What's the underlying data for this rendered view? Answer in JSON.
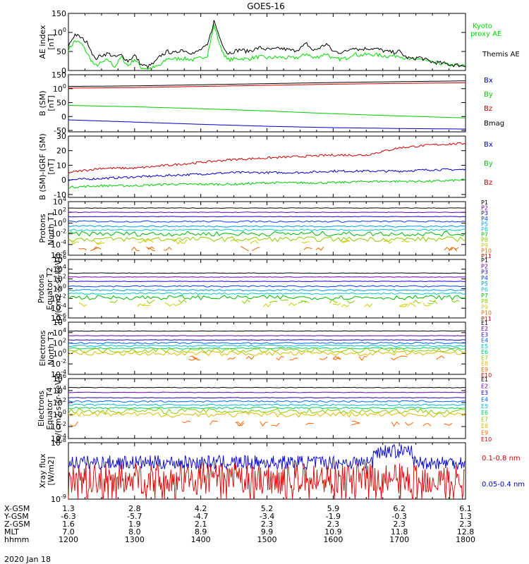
{
  "title": "GOES-16",
  "date_label": "2020 Jan 18",
  "chart_data": [
    {
      "type": "line",
      "panel": "AE index",
      "ylabel": [
        "AE index",
        "[nT]"
      ],
      "ylim": [
        0,
        150
      ],
      "yticks": [
        "0",
        "50",
        "100",
        "150"
      ],
      "ytick_values": [
        0,
        50,
        100,
        150
      ],
      "series": [
        {
          "name": "Kyoto proxy AE",
          "color": "#00dd00",
          "x": [
            1200,
            1210,
            1220,
            1230,
            1240,
            1250,
            1260,
            1270,
            1280,
            1290,
            1300,
            1310,
            1320,
            1330,
            1340,
            1350,
            1360,
            1370,
            1380,
            1390,
            1400,
            1410,
            1420,
            1430,
            1440,
            1450,
            1460,
            1470,
            1480,
            1490,
            1500,
            1510,
            1520,
            1530,
            1540,
            1550,
            1560,
            1570,
            1580,
            1590,
            1600,
            1610,
            1620,
            1630,
            1640,
            1650,
            1660,
            1670,
            1680,
            1690,
            1700,
            1710,
            1720,
            1730,
            1740,
            1750,
            1760,
            1770,
            1780,
            1790,
            1800
          ],
          "values": [
            55,
            78,
            70,
            40,
            12,
            20,
            28,
            10,
            35,
            12,
            30,
            8,
            5,
            8,
            15,
            32,
            30,
            32,
            30,
            28,
            33,
            40,
            120,
            60,
            28,
            30,
            32,
            30,
            34,
            36,
            33,
            34,
            35,
            33,
            33,
            35,
            45,
            32,
            38,
            45,
            30,
            30,
            32,
            44,
            40,
            42,
            42,
            40,
            38,
            38,
            40,
            30,
            28,
            32,
            25,
            20,
            20,
            15,
            14,
            12,
            12
          ]
        },
        {
          "name": "Themis AE",
          "color": "#000000",
          "x": [
            1200,
            1210,
            1220,
            1230,
            1240,
            1250,
            1260,
            1270,
            1280,
            1290,
            1300,
            1310,
            1320,
            1330,
            1340,
            1350,
            1360,
            1370,
            1380,
            1390,
            1400,
            1410,
            1420,
            1430,
            1440,
            1450,
            1460,
            1470,
            1480,
            1490,
            1500,
            1510,
            1520,
            1530,
            1540,
            1550,
            1560,
            1570,
            1580,
            1590,
            1600,
            1610,
            1620,
            1630,
            1640,
            1650,
            1660,
            1670,
            1680,
            1690,
            1700,
            1710,
            1720,
            1730,
            1740,
            1750,
            1760,
            1770,
            1780,
            1790,
            1800
          ],
          "values": [
            65,
            95,
            85,
            70,
            30,
            40,
            45,
            35,
            40,
            25,
            40,
            15,
            10,
            20,
            40,
            50,
            45,
            55,
            50,
            45,
            55,
            65,
            130,
            80,
            45,
            50,
            55,
            50,
            55,
            60,
            55,
            55,
            58,
            55,
            52,
            58,
            70,
            52,
            60,
            70,
            50,
            48,
            50,
            62,
            55,
            58,
            58,
            55,
            50,
            48,
            50,
            35,
            30,
            35,
            28,
            22,
            20,
            18,
            15,
            14,
            12
          ]
        }
      ]
    },
    {
      "type": "line",
      "panel": "B (SM)",
      "ylabel": [
        "B (SM)",
        "[nT]"
      ],
      "ylim": [
        -55,
        150
      ],
      "yticks": [
        "-50",
        "0",
        "50",
        "100",
        "150"
      ],
      "ytick_values": [
        -50,
        0,
        50,
        100,
        150
      ],
      "series": [
        {
          "name": "Bx",
          "color": "#0000cc",
          "x": [
            1200,
            1300,
            1400,
            1500,
            1600,
            1700,
            1800
          ],
          "values": [
            -12,
            -20,
            -28,
            -35,
            -40,
            -43,
            -45
          ]
        },
        {
          "name": "By",
          "color": "#00cc00",
          "x": [
            1200,
            1300,
            1400,
            1500,
            1600,
            1700,
            1800
          ],
          "values": [
            40,
            35,
            28,
            20,
            10,
            2,
            -5
          ]
        },
        {
          "name": "Bz",
          "color": "#cc0000",
          "x": [
            1200,
            1300,
            1400,
            1500,
            1600,
            1700,
            1800
          ],
          "values": [
            102,
            104,
            108,
            112,
            116,
            119,
            121
          ]
        },
        {
          "name": "Bmag",
          "color": "#000000",
          "x": [
            1200,
            1300,
            1400,
            1500,
            1600,
            1700,
            1800
          ],
          "values": [
            108,
            110,
            114,
            118,
            122,
            125,
            128
          ]
        }
      ]
    },
    {
      "type": "line",
      "panel": "B (SM)-IGRF (SM)",
      "ylabel": [
        "B (SM)-IGRF (SM)",
        "[nT]"
      ],
      "ylim": [
        -12,
        30
      ],
      "yticks": [
        "-10",
        "0",
        "10",
        "20",
        "30"
      ],
      "ytick_values": [
        -10,
        0,
        10,
        20,
        30
      ],
      "series": [
        {
          "name": "Bx",
          "color": "#0000cc",
          "x": [
            1200,
            1250,
            1300,
            1350,
            1400,
            1450,
            1500,
            1550,
            1600,
            1650,
            1700,
            1750,
            1800
          ],
          "values": [
            0,
            1,
            2,
            3,
            4,
            5,
            5,
            5,
            6,
            6,
            6,
            7,
            7
          ]
        },
        {
          "name": "By",
          "color": "#00cc00",
          "x": [
            1200,
            1250,
            1300,
            1350,
            1400,
            1450,
            1500,
            1550,
            1600,
            1650,
            1700,
            1750,
            1800
          ],
          "values": [
            -5,
            -4,
            -4,
            -3,
            -3,
            -3,
            -2,
            -2,
            -2,
            -1,
            -1,
            -1,
            0
          ]
        },
        {
          "name": "Bz",
          "color": "#cc0000",
          "x": [
            1200,
            1250,
            1300,
            1350,
            1400,
            1450,
            1500,
            1550,
            1600,
            1650,
            1700,
            1750,
            1800
          ],
          "values": [
            5,
            8,
            8,
            10,
            12,
            14,
            15,
            16,
            17,
            17,
            22,
            24,
            25
          ]
        }
      ]
    },
    {
      "type": "line",
      "panel": "Protons North T1",
      "ylabel": [
        "Protons",
        "North T1"
      ],
      "yscale": "log",
      "ylim_exp": [
        -6,
        4
      ],
      "yticks": [
        "10-6",
        "10-4",
        "10-2",
        "100",
        "102",
        "104"
      ],
      "ytick_values": [
        -6,
        -4,
        -2,
        0,
        2,
        4
      ],
      "legend": [
        "P1",
        "P2",
        "P3",
        "P4",
        "P5",
        "P6",
        "P7",
        "P8",
        "P9",
        "P10",
        "P11"
      ],
      "legend_colors": [
        "#000000",
        "#6a00aa",
        "#2200cc",
        "#0040ff",
        "#0099ee",
        "#00c8c8",
        "#00bb00",
        "#88cc00",
        "#cccc00",
        "#ee6600",
        "#dd0000"
      ],
      "series_log10": [
        2.8,
        2.0,
        1.2,
        0.3,
        -0.6,
        -1.3,
        -2.0,
        -3.0,
        -3.5,
        -4.8
      ]
    },
    {
      "type": "line",
      "panel": "Protons Equator T2",
      "ylabel": [
        "Protons",
        "Equator T2",
        "[p/(cm2-s-sr-keV)]"
      ],
      "yscale": "log",
      "ylim_exp": [
        -6,
        6
      ],
      "yticks": [
        "10-6",
        "10-4",
        "10-2",
        "100",
        "102",
        "104",
        "106"
      ],
      "ytick_values": [
        -6,
        -4,
        -2,
        0,
        2,
        4,
        6
      ],
      "legend": [
        "P1",
        "P2",
        "P3",
        "P4",
        "P5",
        "P6",
        "P7",
        "P8",
        "P9",
        "P10",
        "P11"
      ],
      "legend_colors": [
        "#000000",
        "#6a00aa",
        "#2200cc",
        "#0040ff",
        "#0099ee",
        "#00c8c8",
        "#00bb00",
        "#88cc00",
        "#cccc00",
        "#ee6600",
        "#dd0000"
      ],
      "series_log10": [
        3.2,
        2.4,
        1.5,
        0.5,
        -0.3,
        -1.0,
        -1.8,
        -2.7,
        -3.3
      ]
    },
    {
      "type": "line",
      "panel": "Electrons North T3",
      "ylabel": [
        "Electrons",
        "North T3"
      ],
      "yscale": "log",
      "ylim_exp": [
        -4,
        6
      ],
      "yticks": [
        "10-4",
        "10-2",
        "100",
        "102",
        "104",
        "106"
      ],
      "ytick_values": [
        -4,
        -2,
        0,
        2,
        4,
        6
      ],
      "legend": [
        "E1",
        "E2",
        "E3",
        "E4",
        "E5",
        "E6",
        "E7",
        "E8",
        "E9",
        "E10"
      ],
      "legend_colors": [
        "#000000",
        "#6a00aa",
        "#2200cc",
        "#0066ff",
        "#00bbdd",
        "#00cc66",
        "#88cc00",
        "#ddbb00",
        "#ff6600",
        "#dd0000"
      ],
      "series_log10": [
        4.3,
        3.4,
        2.6,
        2.0,
        1.5,
        1.0,
        0.6,
        0.0,
        -0.9
      ]
    },
    {
      "type": "line",
      "panel": "Electrons Equator T4",
      "ylabel": [
        "Electrons",
        "Equator T4",
        "[e/(cm2-s-sr-keV)]"
      ],
      "yscale": "log",
      "ylim_exp": [
        -4,
        6
      ],
      "yticks": [
        "10-4",
        "10-2",
        "100",
        "102",
        "104",
        "106"
      ],
      "ytick_values": [
        -4,
        -2,
        0,
        2,
        4,
        6
      ],
      "legend": [
        "E1",
        "E2",
        "E3",
        "E4",
        "E5",
        "E6",
        "E7",
        "E8",
        "E9",
        "E10"
      ],
      "legend_colors": [
        "#000000",
        "#6a00aa",
        "#2200cc",
        "#0066ff",
        "#00bbdd",
        "#00cc66",
        "#88cc00",
        "#ddbb00",
        "#ff6600",
        "#dd0000"
      ],
      "series_log10": [
        4.5,
        3.7,
        2.8,
        2.2,
        1.6,
        1.1,
        0.6,
        0.0,
        -1.5
      ]
    },
    {
      "type": "line",
      "panel": "Xray flux",
      "ylabel": [
        "Xray flux",
        "[W/m2]"
      ],
      "yscale": "log",
      "ylim_exp": [
        -9,
        -8
      ],
      "yticks": [
        "10-9",
        "10-8"
      ],
      "ytick_values": [
        -9,
        -8
      ],
      "series": [
        {
          "name": "0.1-0.8 nm",
          "color": "#dd0000"
        },
        {
          "name": "0.05-0.4 nm",
          "color": "#0000cc"
        }
      ]
    }
  ],
  "x_axis": {
    "range": [
      1200,
      1800
    ],
    "row_labels": [
      "X-GSM",
      "Y-GSM",
      "Z-GSM",
      "MLT",
      "hhmm"
    ],
    "columns": [
      [
        "1.3",
        "-6.3",
        "1.6",
        "7.0",
        "1200"
      ],
      [
        "2.8",
        "-5.7",
        "1.9",
        "8.0",
        "1300"
      ],
      [
        "4.2",
        "-4.7",
        "2.1",
        "8.9",
        "1400"
      ],
      [
        "5.2",
        "-3.4",
        "2.3",
        "9.9",
        "1500"
      ],
      [
        "5.9",
        "-1.9",
        "2.3",
        "10.9",
        "1600"
      ],
      [
        "6.2",
        "-0.3",
        "2.3",
        "11.8",
        "1700"
      ],
      [
        "6.1",
        "1.3",
        "2.3",
        "12.8",
        "1800"
      ]
    ]
  },
  "side_labels": {
    "ae": [
      "Kyoto",
      "proxy AE",
      "Themis AE"
    ],
    "ae_colors": [
      "#00dd00",
      "#00dd00",
      "#000000"
    ],
    "b_sm": [
      "Bx",
      "By",
      "Bz",
      "Bmag"
    ],
    "b_sm_colors": [
      "#0000cc",
      "#00cc00",
      "#cc0000",
      "#000000"
    ],
    "b_igrf": [
      "Bx",
      "By",
      "Bz"
    ],
    "b_igrf_colors": [
      "#0000cc",
      "#00cc00",
      "#cc0000"
    ],
    "xray": [
      "0.1-0.8 nm",
      "0.05-0.4 nm"
    ],
    "xray_colors": [
      "#dd0000",
      "#0000cc"
    ]
  }
}
